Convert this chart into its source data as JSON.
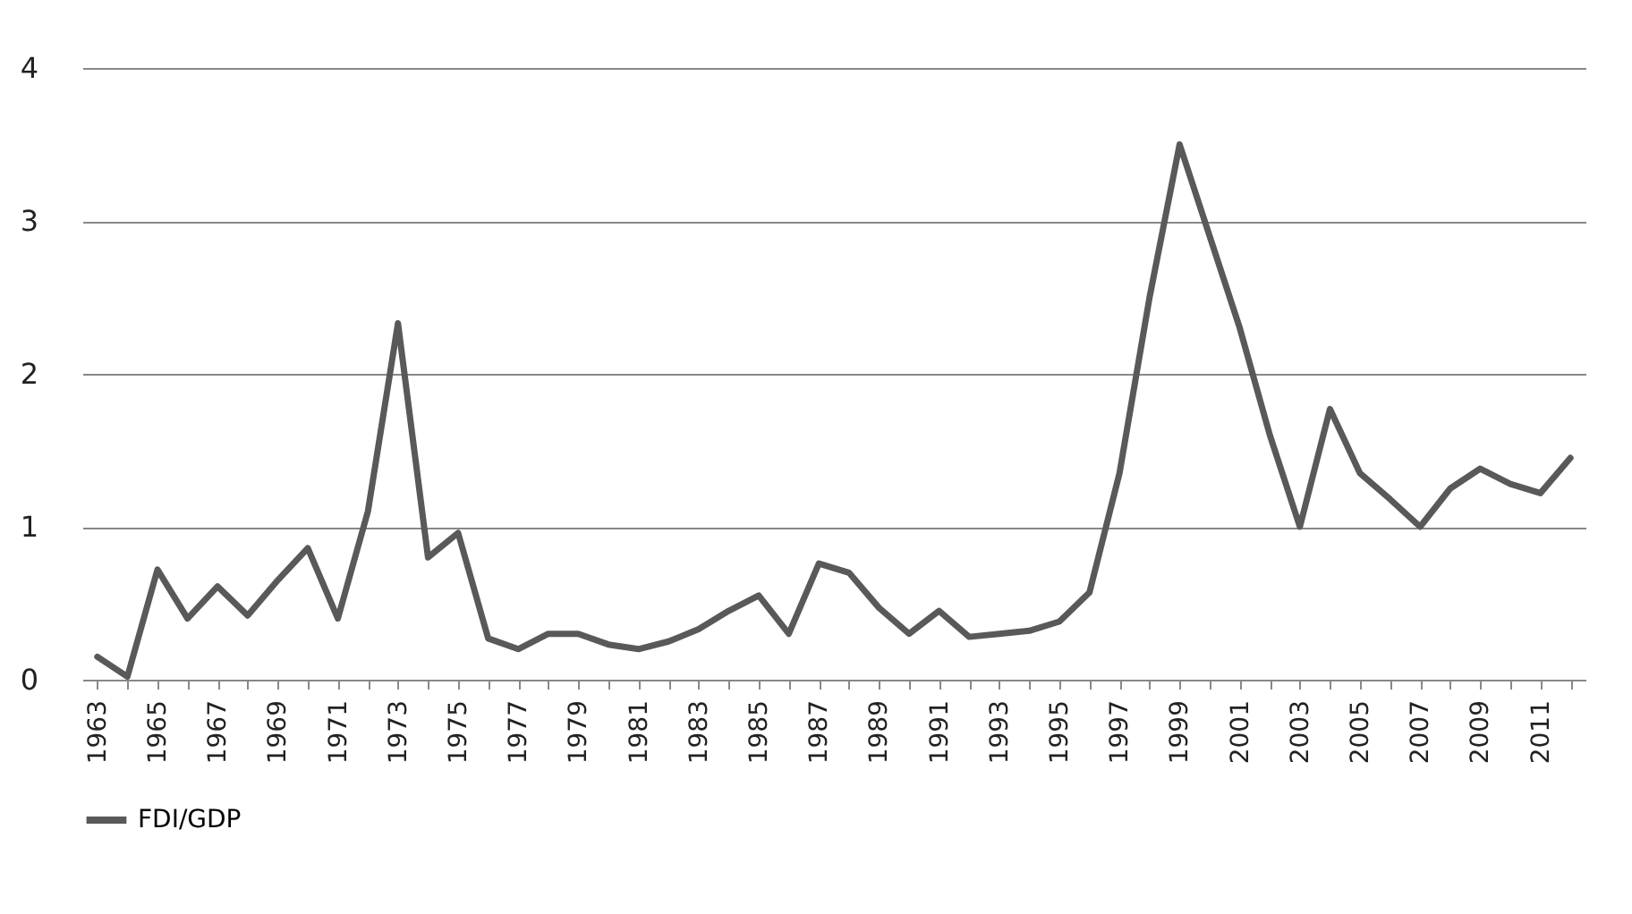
{
  "chart_data": {
    "type": "line",
    "categories": [
      "1963",
      null,
      "1965",
      null,
      "1967",
      null,
      "1969",
      null,
      "1971",
      null,
      "1973",
      null,
      "1975",
      null,
      "1977",
      null,
      "1979",
      null,
      "1981",
      null,
      "1983",
      null,
      "1985",
      null,
      "1987",
      null,
      "1989",
      null,
      "1991",
      null,
      "1993",
      null,
      "1995",
      null,
      "1997",
      null,
      "1999",
      null,
      "2001",
      null,
      "2003",
      null,
      "2005",
      null,
      "2007",
      null,
      "2009",
      null,
      "2011",
      null
    ],
    "series": [
      {
        "name": "FDI/GDP",
        "color": "#595959",
        "values": [
          0.15,
          0.02,
          0.72,
          0.4,
          0.61,
          0.42,
          0.65,
          0.86,
          0.4,
          1.1,
          2.33,
          0.8,
          0.96,
          0.27,
          0.2,
          0.3,
          0.3,
          0.23,
          0.2,
          0.25,
          0.33,
          0.45,
          0.55,
          0.3,
          0.76,
          0.7,
          0.47,
          0.3,
          0.45,
          0.28,
          0.3,
          0.32,
          0.38,
          0.57,
          1.35,
          2.5,
          3.5,
          2.9,
          2.3,
          1.6,
          1.0,
          1.77,
          1.35,
          1.18,
          1.0,
          1.25,
          1.38,
          1.28,
          1.22,
          1.45
        ]
      }
    ],
    "ylim": [
      0,
      4
    ],
    "yticks": [
      0,
      1,
      2,
      3,
      4
    ],
    "grid": "y",
    "legend": "bottom",
    "marker": "none",
    "line_style": "solid"
  }
}
